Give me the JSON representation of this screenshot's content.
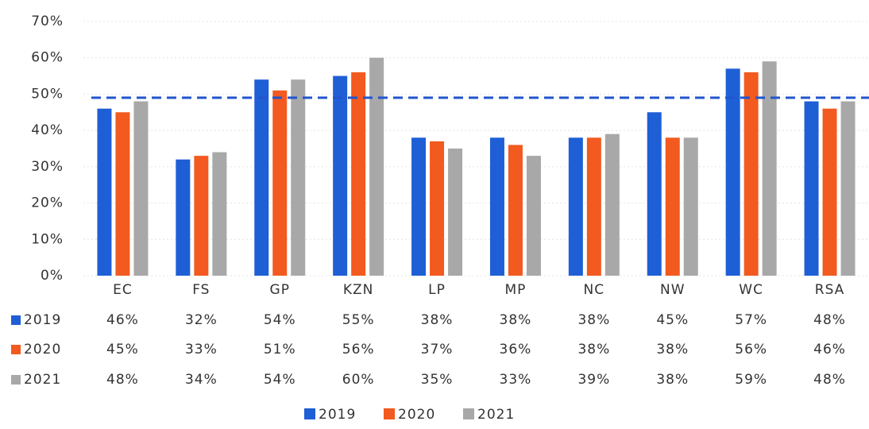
{
  "chart_data": {
    "type": "bar",
    "categories": [
      "EC",
      "FS",
      "GP",
      "KZN",
      "LP",
      "MP",
      "NC",
      "NW",
      "WC",
      "RSA"
    ],
    "series": [
      {
        "name": "2019",
        "color": "#1f5fd6",
        "values": [
          46,
          32,
          54,
          55,
          38,
          38,
          38,
          45,
          57,
          48
        ],
        "value_labels": [
          "46%",
          "32%",
          "54%",
          "55%",
          "38%",
          "38%",
          "38%",
          "45%",
          "57%",
          "48%"
        ]
      },
      {
        "name": "2020",
        "color": "#f25a1f",
        "values": [
          45,
          33,
          51,
          56,
          37,
          36,
          38,
          38,
          56,
          46
        ],
        "value_labels": [
          "45%",
          "33%",
          "51%",
          "56%",
          "37%",
          "36%",
          "38%",
          "38%",
          "56%",
          "46%"
        ]
      },
      {
        "name": "2021",
        "color": "#a8a8a8",
        "values": [
          48,
          34,
          54,
          60,
          35,
          33,
          39,
          38,
          59,
          48
        ],
        "value_labels": [
          "48%",
          "34%",
          "54%",
          "60%",
          "35%",
          "33%",
          "39%",
          "38%",
          "59%",
          "48%"
        ]
      }
    ],
    "ylim": [
      0,
      70
    ],
    "yticks": [
      {
        "value": 0,
        "label": "0%"
      },
      {
        "value": 10,
        "label": "10%"
      },
      {
        "value": 20,
        "label": "20%"
      },
      {
        "value": 30,
        "label": "30%"
      },
      {
        "value": 40,
        "label": "40%"
      },
      {
        "value": 50,
        "label": "50%"
      },
      {
        "value": 60,
        "label": "60%"
      },
      {
        "value": 70,
        "label": "70%"
      }
    ],
    "grid": true,
    "reference_line": {
      "value": 49,
      "color": "#2255cc"
    },
    "legend": "bottom"
  }
}
